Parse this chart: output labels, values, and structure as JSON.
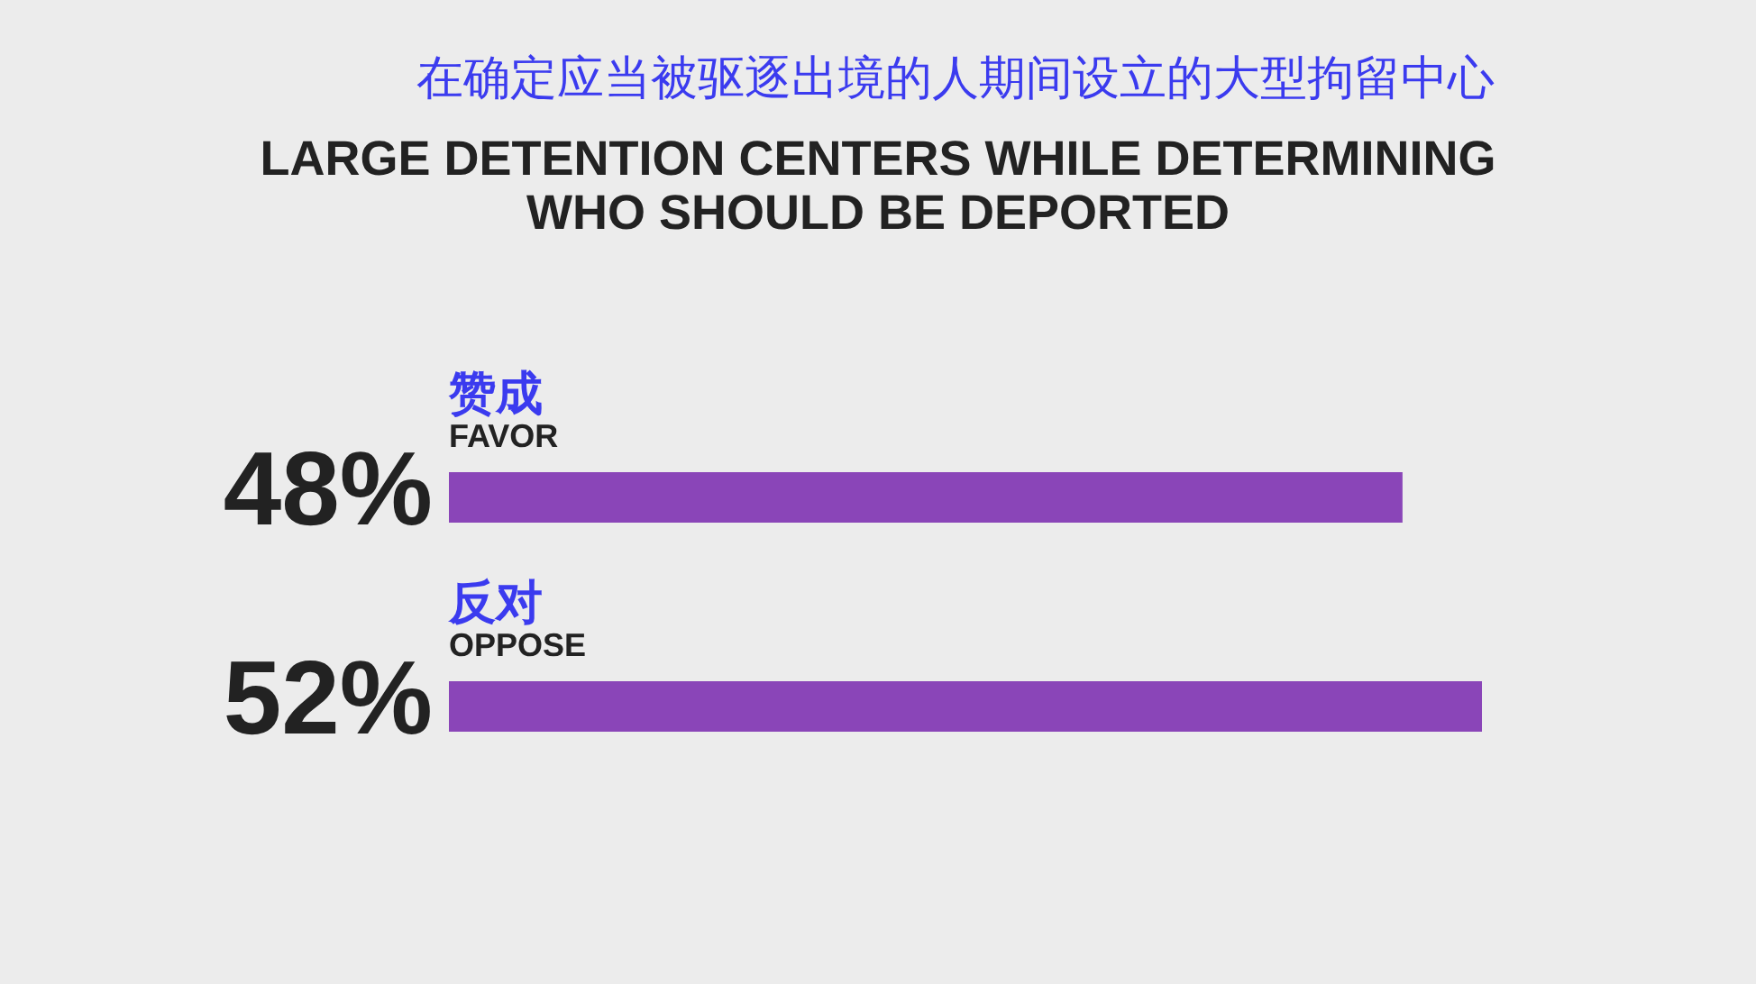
{
  "chart_data": {
    "type": "bar",
    "orientation": "horizontal",
    "title": "在确定应当被驱逐出境的人期间设立的大型拘留中心",
    "subtitle": "LARGE DETENTION CENTERS WHILE DETERMINING\nWHO SHOULD BE DEPORTED",
    "categories": [
      "赞成\nFAVOR",
      "反对\nOPPOSE"
    ],
    "values": [
      48,
      52
    ],
    "value_labels": [
      "48%",
      "52%"
    ],
    "color": "#8a45b8"
  }
}
